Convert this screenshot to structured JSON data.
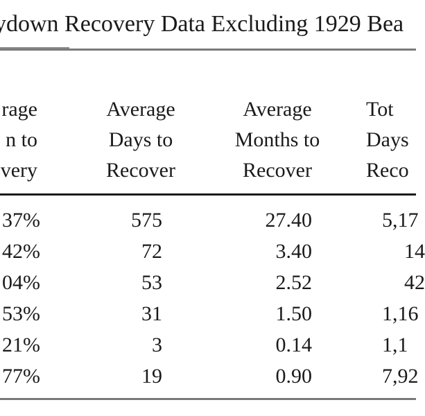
{
  "document": {
    "title": "ydown Recovery Data Excluding 1929 Bea",
    "table": {
      "headers": [
        [
          "rage",
          "n to",
          "overy"
        ],
        [
          "Average",
          "Days to",
          "Recover"
        ],
        [
          "Average",
          "Months to",
          "Recover"
        ],
        [
          "Tot",
          "Days",
          "Reco"
        ]
      ],
      "rows": [
        [
          "37%",
          "575",
          "27.40",
          "5,17"
        ],
        [
          "42%",
          "72",
          "3.40",
          "14"
        ],
        [
          "04%",
          "53",
          "2.52",
          "42"
        ],
        [
          "53%",
          "31",
          "1.50",
          "1,16"
        ],
        [
          "21%",
          "3",
          "0.14",
          "1,1"
        ],
        [
          "77%",
          "19",
          "0.90",
          "7,92"
        ]
      ]
    }
  }
}
